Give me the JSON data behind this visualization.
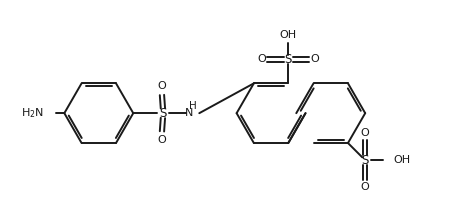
{
  "background": "#ffffff",
  "line_color": "#1a1a1a",
  "lw": 1.4,
  "dg": 0.055,
  "figsize": [
    4.56,
    2.12
  ],
  "dpi": 100,
  "xlim": [
    0,
    9.5
  ],
  "ylim": [
    0,
    4.4
  ]
}
